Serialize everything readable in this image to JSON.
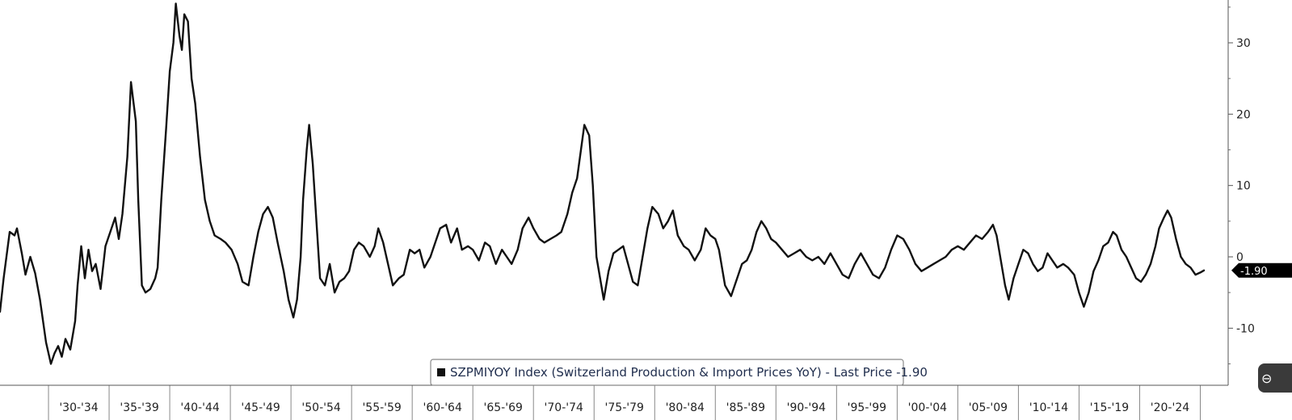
{
  "chart_data": {
    "type": "line",
    "title": "",
    "xlabel": "",
    "ylabel": "",
    "ylim": [
      -18,
      36
    ],
    "yticks": [
      -10,
      0,
      10,
      20,
      30
    ],
    "xlim": [
      1926.0,
      2027.3
    ],
    "grid": false,
    "legend_placement": "bottom-center",
    "x_tick_labels": [
      "'30-'34",
      "'35-'39",
      "'40-'44",
      "'45-'49",
      "'50-'54",
      "'55-'59",
      "'60-'64",
      "'65-'69",
      "'70-'74",
      "'75-'79",
      "'80-'84",
      "'85-'89",
      "'90-'94",
      "'95-'99",
      "'00-'04",
      "'05-'09",
      "'10-'14",
      "'15-'19",
      "'20-'24"
    ],
    "series": [
      {
        "name": "SZPMIYOY Index (Switzerland Production & Import Prices YoY)",
        "color": "#111111",
        "points": [
          [
            1926.0,
            -7.7
          ],
          [
            1926.3,
            -3.0
          ],
          [
            1926.8,
            3.5
          ],
          [
            1927.2,
            3.0
          ],
          [
            1927.4,
            4.0
          ],
          [
            1927.8,
            0.5
          ],
          [
            1928.1,
            -2.5
          ],
          [
            1928.5,
            0.0
          ],
          [
            1928.9,
            -2.3
          ],
          [
            1929.3,
            -6.0
          ],
          [
            1929.8,
            -12.0
          ],
          [
            1930.2,
            -15.0
          ],
          [
            1930.5,
            -13.5
          ],
          [
            1930.8,
            -12.5
          ],
          [
            1931.1,
            -14.0
          ],
          [
            1931.4,
            -11.5
          ],
          [
            1931.8,
            -13.0
          ],
          [
            1932.2,
            -9.0
          ],
          [
            1932.4,
            -4.0
          ],
          [
            1932.7,
            1.5
          ],
          [
            1933.0,
            -3.0
          ],
          [
            1933.3,
            1.0
          ],
          [
            1933.6,
            -2.0
          ],
          [
            1933.9,
            -1.0
          ],
          [
            1934.3,
            -4.5
          ],
          [
            1934.7,
            1.5
          ],
          [
            1935.1,
            3.5
          ],
          [
            1935.5,
            5.5
          ],
          [
            1935.8,
            2.5
          ],
          [
            1936.1,
            6.0
          ],
          [
            1936.5,
            14.0
          ],
          [
            1936.8,
            24.5
          ],
          [
            1937.2,
            19.0
          ],
          [
            1937.4,
            8.0
          ],
          [
            1937.7,
            -4.0
          ],
          [
            1938.0,
            -5.0
          ],
          [
            1938.4,
            -4.5
          ],
          [
            1938.8,
            -3.0
          ],
          [
            1939.0,
            -1.5
          ],
          [
            1939.3,
            8.0
          ],
          [
            1939.7,
            18.0
          ],
          [
            1940.0,
            26.0
          ],
          [
            1940.3,
            30.0
          ],
          [
            1940.5,
            35.5
          ],
          [
            1940.8,
            31.0
          ],
          [
            1941.0,
            29.0
          ],
          [
            1941.2,
            34.0
          ],
          [
            1941.5,
            33.0
          ],
          [
            1941.8,
            25.0
          ],
          [
            1942.1,
            21.5
          ],
          [
            1942.5,
            14.0
          ],
          [
            1942.9,
            8.0
          ],
          [
            1943.3,
            5.0
          ],
          [
            1943.7,
            3.0
          ],
          [
            1944.2,
            2.5
          ],
          [
            1944.6,
            2.0
          ],
          [
            1945.1,
            1.0
          ],
          [
            1945.6,
            -1.0
          ],
          [
            1946.0,
            -3.5
          ],
          [
            1946.5,
            -4.0
          ],
          [
            1946.9,
            0.0
          ],
          [
            1947.3,
            3.5
          ],
          [
            1947.7,
            6.0
          ],
          [
            1948.1,
            7.0
          ],
          [
            1948.5,
            5.5
          ],
          [
            1948.9,
            2.0
          ],
          [
            1949.4,
            -2.0
          ],
          [
            1949.8,
            -6.0
          ],
          [
            1950.2,
            -8.5
          ],
          [
            1950.5,
            -6.0
          ],
          [
            1950.8,
            0.0
          ],
          [
            1951.0,
            8.0
          ],
          [
            1951.3,
            15.0
          ],
          [
            1951.5,
            18.5
          ],
          [
            1951.8,
            13.0
          ],
          [
            1952.1,
            5.0
          ],
          [
            1952.4,
            -3.0
          ],
          [
            1952.8,
            -4.0
          ],
          [
            1953.2,
            -1.0
          ],
          [
            1953.6,
            -5.0
          ],
          [
            1954.0,
            -3.5
          ],
          [
            1954.4,
            -3.0
          ],
          [
            1954.8,
            -2.0
          ],
          [
            1955.2,
            1.0
          ],
          [
            1955.6,
            2.0
          ],
          [
            1956.0,
            1.5
          ],
          [
            1956.5,
            0.0
          ],
          [
            1956.9,
            1.5
          ],
          [
            1957.2,
            4.0
          ],
          [
            1957.6,
            2.0
          ],
          [
            1958.0,
            -1.0
          ],
          [
            1958.4,
            -4.0
          ],
          [
            1958.9,
            -3.0
          ],
          [
            1959.3,
            -2.5
          ],
          [
            1959.8,
            1.0
          ],
          [
            1960.2,
            0.5
          ],
          [
            1960.6,
            1.0
          ],
          [
            1961.0,
            -1.5
          ],
          [
            1961.5,
            0.0
          ],
          [
            1961.9,
            2.0
          ],
          [
            1962.3,
            4.0
          ],
          [
            1962.8,
            4.5
          ],
          [
            1963.2,
            2.0
          ],
          [
            1963.7,
            4.0
          ],
          [
            1964.1,
            1.0
          ],
          [
            1964.6,
            1.5
          ],
          [
            1965.0,
            1.0
          ],
          [
            1965.5,
            -0.5
          ],
          [
            1966.0,
            2.0
          ],
          [
            1966.4,
            1.5
          ],
          [
            1966.9,
            -1.0
          ],
          [
            1967.4,
            1.0
          ],
          [
            1967.8,
            0.0
          ],
          [
            1968.2,
            -1.0
          ],
          [
            1968.7,
            1.0
          ],
          [
            1969.1,
            4.0
          ],
          [
            1969.6,
            5.5
          ],
          [
            1970.0,
            4.0
          ],
          [
            1970.5,
            2.5
          ],
          [
            1970.9,
            2.0
          ],
          [
            1971.4,
            2.5
          ],
          [
            1971.9,
            3.0
          ],
          [
            1972.3,
            3.5
          ],
          [
            1972.8,
            6.0
          ],
          [
            1973.2,
            9.0
          ],
          [
            1973.6,
            11.0
          ],
          [
            1974.0,
            16.0
          ],
          [
            1974.2,
            18.5
          ],
          [
            1974.6,
            17.0
          ],
          [
            1974.9,
            10.0
          ],
          [
            1975.2,
            0.0
          ],
          [
            1975.5,
            -3.0
          ],
          [
            1975.8,
            -6.0
          ],
          [
            1976.2,
            -2.0
          ],
          [
            1976.6,
            0.5
          ],
          [
            1977.0,
            1.0
          ],
          [
            1977.4,
            1.5
          ],
          [
            1977.8,
            -1.0
          ],
          [
            1978.2,
            -3.5
          ],
          [
            1978.6,
            -4.0
          ],
          [
            1979.0,
            0.0
          ],
          [
            1979.4,
            4.0
          ],
          [
            1979.8,
            7.0
          ],
          [
            1980.3,
            6.0
          ],
          [
            1980.7,
            4.0
          ],
          [
            1981.1,
            5.0
          ],
          [
            1981.5,
            6.5
          ],
          [
            1981.9,
            3.0
          ],
          [
            1982.4,
            1.5
          ],
          [
            1982.8,
            1.0
          ],
          [
            1983.3,
            -0.5
          ],
          [
            1983.8,
            1.0
          ],
          [
            1984.2,
            4.0
          ],
          [
            1984.6,
            3.0
          ],
          [
            1985.0,
            2.5
          ],
          [
            1985.3,
            1.0
          ],
          [
            1985.8,
            -4.0
          ],
          [
            1986.3,
            -5.5
          ],
          [
            1986.8,
            -3.0
          ],
          [
            1987.2,
            -1.0
          ],
          [
            1987.6,
            -0.5
          ],
          [
            1988.0,
            1.0
          ],
          [
            1988.4,
            3.5
          ],
          [
            1988.8,
            5.0
          ],
          [
            1989.2,
            4.0
          ],
          [
            1989.6,
            2.5
          ],
          [
            1990.0,
            2.0
          ],
          [
            1990.5,
            1.0
          ],
          [
            1991.0,
            0.0
          ],
          [
            1991.5,
            0.5
          ],
          [
            1992.0,
            1.0
          ],
          [
            1992.5,
            0.0
          ],
          [
            1993.0,
            -0.5
          ],
          [
            1993.5,
            0.0
          ],
          [
            1994.0,
            -1.0
          ],
          [
            1994.5,
            0.5
          ],
          [
            1995.0,
            -1.0
          ],
          [
            1995.5,
            -2.5
          ],
          [
            1996.0,
            -3.0
          ],
          [
            1996.5,
            -1.0
          ],
          [
            1997.0,
            0.5
          ],
          [
            1997.5,
            -1.0
          ],
          [
            1998.0,
            -2.5
          ],
          [
            1998.5,
            -3.0
          ],
          [
            1999.0,
            -1.5
          ],
          [
            1999.5,
            1.0
          ],
          [
            2000.0,
            3.0
          ],
          [
            2000.5,
            2.5
          ],
          [
            2001.0,
            1.0
          ],
          [
            2001.5,
            -1.0
          ],
          [
            2002.0,
            -2.0
          ],
          [
            2002.5,
            -1.5
          ],
          [
            2003.0,
            -1.0
          ],
          [
            2003.5,
            -0.5
          ],
          [
            2004.0,
            0.0
          ],
          [
            2004.5,
            1.0
          ],
          [
            2005.0,
            1.5
          ],
          [
            2005.5,
            1.0
          ],
          [
            2006.0,
            2.0
          ],
          [
            2006.5,
            3.0
          ],
          [
            2007.0,
            2.5
          ],
          [
            2007.5,
            3.5
          ],
          [
            2007.9,
            4.5
          ],
          [
            2008.2,
            3.0
          ],
          [
            2008.6,
            -1.0
          ],
          [
            2008.9,
            -4.0
          ],
          [
            2009.2,
            -6.0
          ],
          [
            2009.6,
            -3.0
          ],
          [
            2010.0,
            -1.0
          ],
          [
            2010.4,
            1.0
          ],
          [
            2010.8,
            0.5
          ],
          [
            2011.2,
            -1.0
          ],
          [
            2011.6,
            -2.0
          ],
          [
            2012.0,
            -1.5
          ],
          [
            2012.4,
            0.5
          ],
          [
            2012.8,
            -0.5
          ],
          [
            2013.2,
            -1.5
          ],
          [
            2013.7,
            -1.0
          ],
          [
            2014.1,
            -1.5
          ],
          [
            2014.6,
            -2.5
          ],
          [
            2015.0,
            -5.0
          ],
          [
            2015.4,
            -7.0
          ],
          [
            2015.8,
            -5.0
          ],
          [
            2016.2,
            -2.0
          ],
          [
            2016.6,
            -0.5
          ],
          [
            2017.0,
            1.5
          ],
          [
            2017.4,
            2.0
          ],
          [
            2017.8,
            3.5
          ],
          [
            2018.1,
            3.0
          ],
          [
            2018.5,
            1.0
          ],
          [
            2018.9,
            0.0
          ],
          [
            2019.3,
            -1.5
          ],
          [
            2019.7,
            -3.0
          ],
          [
            2020.1,
            -3.5
          ],
          [
            2020.5,
            -2.5
          ],
          [
            2020.9,
            -1.0
          ],
          [
            2021.3,
            1.5
          ],
          [
            2021.6,
            4.0
          ],
          [
            2022.0,
            5.5
          ],
          [
            2022.3,
            6.5
          ],
          [
            2022.6,
            5.5
          ],
          [
            2023.0,
            2.5
          ],
          [
            2023.4,
            0.0
          ],
          [
            2023.8,
            -1.0
          ],
          [
            2024.2,
            -1.5
          ],
          [
            2024.6,
            -2.5
          ],
          [
            2025.0,
            -2.2
          ],
          [
            2025.3,
            -1.9
          ]
        ]
      }
    ],
    "legend_label": "SZPMIYOY Index (Switzerland Production & Import Prices YoY) - Last Price -1.90",
    "last_price_label": "-1.90",
    "last_price": -1.9,
    "last_price_color": "#000000"
  }
}
